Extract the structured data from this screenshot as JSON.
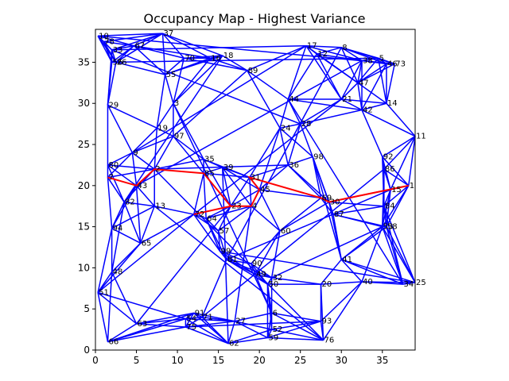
{
  "chart_data": {
    "type": "network",
    "title": "Occupancy Map - Highest Variance",
    "xlabel": "",
    "ylabel": "",
    "xlim": [
      0,
      39
    ],
    "ylim": [
      0,
      39
    ],
    "xticks": [
      0,
      5,
      10,
      15,
      20,
      25,
      30,
      35
    ],
    "yticks": [
      0,
      5,
      10,
      15,
      20,
      25,
      30,
      35
    ],
    "edge_color": "#0000ff",
    "path_color": "#ff0000",
    "grid": false,
    "nodes": [
      {
        "id": "1",
        "x": 38.2,
        "y": 20.0
      },
      {
        "id": "5",
        "x": 34.5,
        "y": 35.5
      },
      {
        "id": "8",
        "x": 30.0,
        "y": 36.8
      },
      {
        "id": "10",
        "x": 0.3,
        "y": 38.2
      },
      {
        "id": "11",
        "x": 39.0,
        "y": 26.0
      },
      {
        "id": "14",
        "x": 35.5,
        "y": 30.0
      },
      {
        "id": "17",
        "x": 25.7,
        "y": 37.0
      },
      {
        "id": "18",
        "x": 15.5,
        "y": 35.8
      },
      {
        "id": "20",
        "x": 27.5,
        "y": 8.0
      },
      {
        "id": "25",
        "x": 39.0,
        "y": 8.2
      },
      {
        "id": "29",
        "x": 1.5,
        "y": 29.8
      },
      {
        "id": "30",
        "x": 28.5,
        "y": 18.0
      },
      {
        "id": "33",
        "x": 2.0,
        "y": 36.5
      },
      {
        "id": "35",
        "x": 13.2,
        "y": 23.2
      },
      {
        "id": "37",
        "x": 8.2,
        "y": 38.5
      },
      {
        "id": "39",
        "x": 15.5,
        "y": 22.2
      },
      {
        "id": "40",
        "x": 32.5,
        "y": 8.3
      },
      {
        "id": "41",
        "x": 30.0,
        "y": 11.0
      },
      {
        "id": "42",
        "x": 32.5,
        "y": 29.2
      },
      {
        "id": "46",
        "x": 35.5,
        "y": 34.8
      },
      {
        "id": "48",
        "x": 2.0,
        "y": 9.5
      },
      {
        "id": "51",
        "x": 0.3,
        "y": 7.0
      },
      {
        "id": "52",
        "x": 21.5,
        "y": 2.5
      },
      {
        "id": "53",
        "x": 35.0,
        "y": 15.0
      },
      {
        "id": "56",
        "x": 2.0,
        "y": 35.0
      },
      {
        "id": "58",
        "x": 35.5,
        "y": 15.0
      },
      {
        "id": "60",
        "x": 22.5,
        "y": 14.5
      },
      {
        "id": "62",
        "x": 16.2,
        "y": 0.8
      },
      {
        "id": "63",
        "x": 5.0,
        "y": 3.2
      },
      {
        "id": "66",
        "x": 1.5,
        "y": 1.0
      },
      {
        "id": "67",
        "x": 4.7,
        "y": 37.0
      },
      {
        "id": "70",
        "x": 10.8,
        "y": 35.5
      },
      {
        "id": "73",
        "x": 36.5,
        "y": 34.8
      },
      {
        "id": "76",
        "x": 27.8,
        "y": 1.2
      },
      {
        "id": "78",
        "x": 1.0,
        "y": 37.5
      },
      {
        "id": "80",
        "x": 1.5,
        "y": 22.5
      },
      {
        "id": "86",
        "x": 35.2,
        "y": 22.0
      },
      {
        "id": "92",
        "x": 35.0,
        "y": 23.5
      },
      {
        "id": "97",
        "x": 9.5,
        "y": 26.0
      },
      {
        "id": "98",
        "x": 26.5,
        "y": 23.5
      },
      {
        "id": "26",
        "x": 2.5,
        "y": 35.0
      },
      {
        "id": "55",
        "x": 8.5,
        "y": 33.5
      },
      {
        "id": "89",
        "x": 18.5,
        "y": 34.0
      },
      {
        "id": "16",
        "x": 14.0,
        "y": 35.5
      },
      {
        "id": "3",
        "x": 9.5,
        "y": 30.0
      },
      {
        "id": "38",
        "x": 32.5,
        "y": 35.2
      },
      {
        "id": "47",
        "x": 32.0,
        "y": 32.5
      },
      {
        "id": "12",
        "x": 27.0,
        "y": 36.0
      },
      {
        "id": "44",
        "x": 23.5,
        "y": 30.5
      },
      {
        "id": "21",
        "x": 30.0,
        "y": 30.5
      },
      {
        "id": "24",
        "x": 22.5,
        "y": 27.0
      },
      {
        "id": "28",
        "x": 25.0,
        "y": 27.5
      },
      {
        "id": "19",
        "x": 7.5,
        "y": 27.0
      },
      {
        "id": "9",
        "x": 4.5,
        "y": 24.0
      },
      {
        "id": "2",
        "x": 7.2,
        "y": 22.0
      },
      {
        "id": "85",
        "x": 13.2,
        "y": 21.5
      },
      {
        "id": "31",
        "x": 18.8,
        "y": 21.0
      },
      {
        "id": "36",
        "x": 23.5,
        "y": 22.5
      },
      {
        "id": "7",
        "x": 1.5,
        "y": 21.0
      },
      {
        "id": "43",
        "x": 5.0,
        "y": 20.0
      },
      {
        "id": "15",
        "x": 36.0,
        "y": 19.5
      },
      {
        "id": "45",
        "x": 20.0,
        "y": 19.5
      },
      {
        "id": "69",
        "x": 27.5,
        "y": 18.5
      },
      {
        "id": "82",
        "x": 3.5,
        "y": 18.0
      },
      {
        "id": "13",
        "x": 7.2,
        "y": 17.5
      },
      {
        "id": "4",
        "x": 19.0,
        "y": 17.5
      },
      {
        "id": "23",
        "x": 16.5,
        "y": 17.5
      },
      {
        "id": "84",
        "x": 35.2,
        "y": 17.5
      },
      {
        "id": "87",
        "x": 29.0,
        "y": 16.5
      },
      {
        "id": "72",
        "x": 12.0,
        "y": 16.5
      },
      {
        "id": "64",
        "x": 13.5,
        "y": 16.0
      },
      {
        "id": "94",
        "x": 2.0,
        "y": 14.8
      },
      {
        "id": "57",
        "x": 15.0,
        "y": 14.5
      },
      {
        "id": "65",
        "x": 5.5,
        "y": 13.0
      },
      {
        "id": "99",
        "x": 15.2,
        "y": 12.0
      },
      {
        "id": "81",
        "x": 16.0,
        "y": 11.0
      },
      {
        "id": "90",
        "x": 19.0,
        "y": 10.5
      },
      {
        "id": "49",
        "x": 19.5,
        "y": 9.2
      },
      {
        "id": "32",
        "x": 21.5,
        "y": 8.8
      },
      {
        "id": "50",
        "x": 21.0,
        "y": 8.0
      },
      {
        "id": "34",
        "x": 37.5,
        "y": 8.0
      },
      {
        "id": "6",
        "x": 21.5,
        "y": 4.5
      },
      {
        "id": "91",
        "x": 12.0,
        "y": 4.5
      },
      {
        "id": "54",
        "x": 11.0,
        "y": 3.8
      },
      {
        "id": "27",
        "x": 17.0,
        "y": 3.5
      },
      {
        "id": "71",
        "x": 13.0,
        "y": 4.0
      },
      {
        "id": "75",
        "x": 11.0,
        "y": 2.8
      },
      {
        "id": "93",
        "x": 27.5,
        "y": 3.5
      },
      {
        "id": "59",
        "x": 21.0,
        "y": 1.5
      }
    ],
    "highlighted_path": [
      "7",
      "43",
      "2",
      "85",
      "23",
      "4",
      "45",
      "31",
      "69",
      "30",
      "1"
    ],
    "highlighted_branch": [
      "72",
      "23"
    ]
  }
}
